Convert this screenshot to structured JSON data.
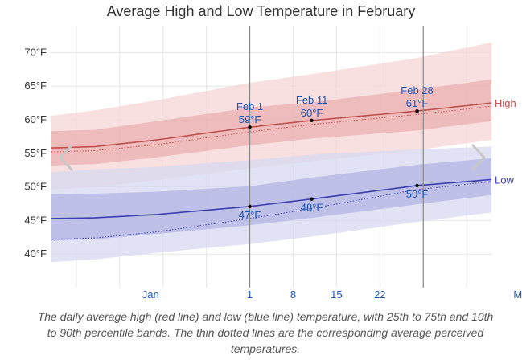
{
  "page": {
    "title": "Average High and Low Temperature in February",
    "caption": "The daily average high (red line) and low (blue line) temperature, with 25th to 75th and 10th to 90th percentile bands. The thin dotted lines are the corresponding average perceived temperatures."
  },
  "colors": {
    "high_line": "#c0504d",
    "high_band_inner": "#e8a3a3",
    "high_band_outer": "#f5d5d5",
    "low_line": "#3b3fb0",
    "low_band_inner": "#a9aadf",
    "low_band_outer": "#d8d8f1",
    "month_label": "#1a56b8",
    "day_marker": "#888888",
    "grid": "#e6e6e6"
  },
  "chart_data": {
    "type": "area",
    "ylim": [
      35,
      74
    ],
    "x_days": [
      -31,
      40
    ],
    "y_ticks": [
      "40°F",
      "45°F",
      "50°F",
      "55°F",
      "60°F",
      "65°F",
      "70°F"
    ],
    "y_tick_values": [
      40,
      45,
      50,
      55,
      60,
      65,
      70
    ],
    "x_tick_labels": [
      {
        "label": "Jan",
        "day": -15
      },
      {
        "label": "1",
        "day": 1
      },
      {
        "label": "8",
        "day": 8
      },
      {
        "label": "15",
        "day": 15
      },
      {
        "label": "22",
        "day": 22
      },
      {
        "label": "Mar",
        "day": 45
      }
    ],
    "day_markers": [
      1,
      29
    ],
    "series": [
      {
        "name": "High",
        "days": [
          -31,
          -24,
          -14,
          1,
          11,
          28,
          40
        ],
        "avg": [
          55.8,
          56.0,
          57.0,
          58.9,
          59.9,
          61.3,
          62.5
        ],
        "perceived": [
          55.2,
          55.4,
          56.3,
          58.2,
          59.3,
          60.8,
          62.0
        ],
        "p25": [
          53.2,
          53.4,
          54.4,
          56.2,
          57.2,
          58.4,
          59.8
        ],
        "p75": [
          58.3,
          58.5,
          59.8,
          61.8,
          62.6,
          64.5,
          66.0
        ],
        "p10": [
          49.6,
          50.0,
          51.0,
          52.8,
          53.8,
          55.5,
          57.0
        ],
        "p90": [
          60.6,
          61.4,
          62.9,
          65.5,
          66.8,
          69.2,
          71.5
        ]
      },
      {
        "name": "Low",
        "days": [
          -31,
          -24,
          -14,
          1,
          11,
          28,
          40
        ],
        "avg": [
          45.3,
          45.4,
          45.9,
          47.1,
          48.2,
          50.2,
          51.1
        ],
        "perceived": [
          42.2,
          42.4,
          43.3,
          45.3,
          46.8,
          49.6,
          50.8
        ],
        "p25": [
          42.0,
          42.2,
          43.0,
          44.3,
          45.4,
          47.4,
          48.8
        ],
        "p75": [
          48.9,
          49.0,
          49.3,
          50.1,
          51.4,
          53.3,
          54.3
        ],
        "p10": [
          38.8,
          39.2,
          40.2,
          41.5,
          42.6,
          44.8,
          46.2
        ],
        "p90": [
          52.2,
          52.6,
          53.0,
          54.0,
          54.8,
          55.6,
          56.0
        ]
      }
    ],
    "annotations": [
      {
        "date": "Feb 1",
        "value": "59°F",
        "day": 1,
        "temp": 58.9,
        "placement": "above"
      },
      {
        "date": "Feb 11",
        "value": "60°F",
        "day": 11,
        "temp": 59.9,
        "placement": "above"
      },
      {
        "date": "Feb 28",
        "value": "61°F",
        "day": 28,
        "temp": 61.3,
        "placement": "above"
      },
      {
        "date": "",
        "value": "47°F",
        "day": 1,
        "temp": 47.1,
        "placement": "below"
      },
      {
        "date": "",
        "value": "48°F",
        "day": 11,
        "temp": 48.2,
        "placement": "below"
      },
      {
        "date": "",
        "value": "50°F",
        "day": 28,
        "temp": 50.2,
        "placement": "below"
      }
    ],
    "nav": {
      "prev_icon": "chevron-left-icon",
      "next_icon": "chevron-right-icon"
    }
  }
}
